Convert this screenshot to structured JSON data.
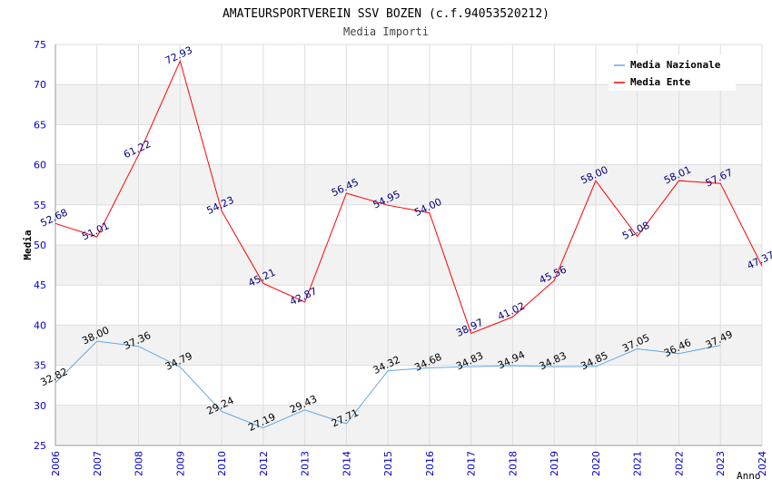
{
  "chart_data": {
    "type": "line",
    "title": "AMATEURSPORTVEREIN SSV BOZEN (c.f.94053520212)",
    "subtitle": "Media Importi",
    "xlabel": "Anno",
    "ylabel": "Media",
    "ylim": [
      25,
      75
    ],
    "yticks": [
      25,
      30,
      35,
      40,
      45,
      50,
      55,
      60,
      65,
      70,
      75
    ],
    "grid": true,
    "legend_position": "top-right",
    "categories": [
      "2006",
      "2007",
      "2008",
      "2009",
      "2010",
      "2012",
      "2013",
      "2014",
      "2015",
      "2016",
      "2017",
      "2018",
      "2019",
      "2020",
      "2021",
      "2022",
      "2023",
      "2024"
    ],
    "series": [
      {
        "name": "Media Nazionale",
        "color": "#5fa8e6",
        "label_color": "#000000",
        "values": [
          32.82,
          38.0,
          37.36,
          34.79,
          29.24,
          27.19,
          29.43,
          27.71,
          34.32,
          34.68,
          34.83,
          34.94,
          34.83,
          34.85,
          37.05,
          36.46,
          37.49,
          null
        ],
        "labels": [
          "32.82",
          "38.00",
          "37.36",
          "34.79",
          "29.24",
          "27.19",
          "29.43",
          "27.71",
          "34.32",
          "34.68",
          "34.83",
          "34.94",
          "34.83",
          "34.85",
          "37.05",
          "36.46",
          "37.49",
          null
        ]
      },
      {
        "name": "Media Ente",
        "color": "#ff0000",
        "label_color": "#000080",
        "values": [
          52.68,
          51.01,
          61.22,
          72.93,
          54.23,
          45.21,
          42.87,
          56.45,
          54.95,
          54.0,
          38.97,
          41.02,
          45.56,
          58.0,
          51.08,
          58.01,
          57.67,
          47.37
        ],
        "labels": [
          "52.68",
          "51.01",
          "61.22",
          "72.93",
          "54.23",
          "45.21",
          "42.87",
          "56.45",
          "54.95",
          "54.00",
          "38.97",
          "41.02",
          "45.56",
          "58.00",
          "51.08",
          "58.01",
          "57.67",
          "47.37"
        ]
      }
    ],
    "colors": {
      "axis_tick": "#0000cc",
      "band": "#f2f2f2",
      "grid": "#dddddd"
    }
  }
}
